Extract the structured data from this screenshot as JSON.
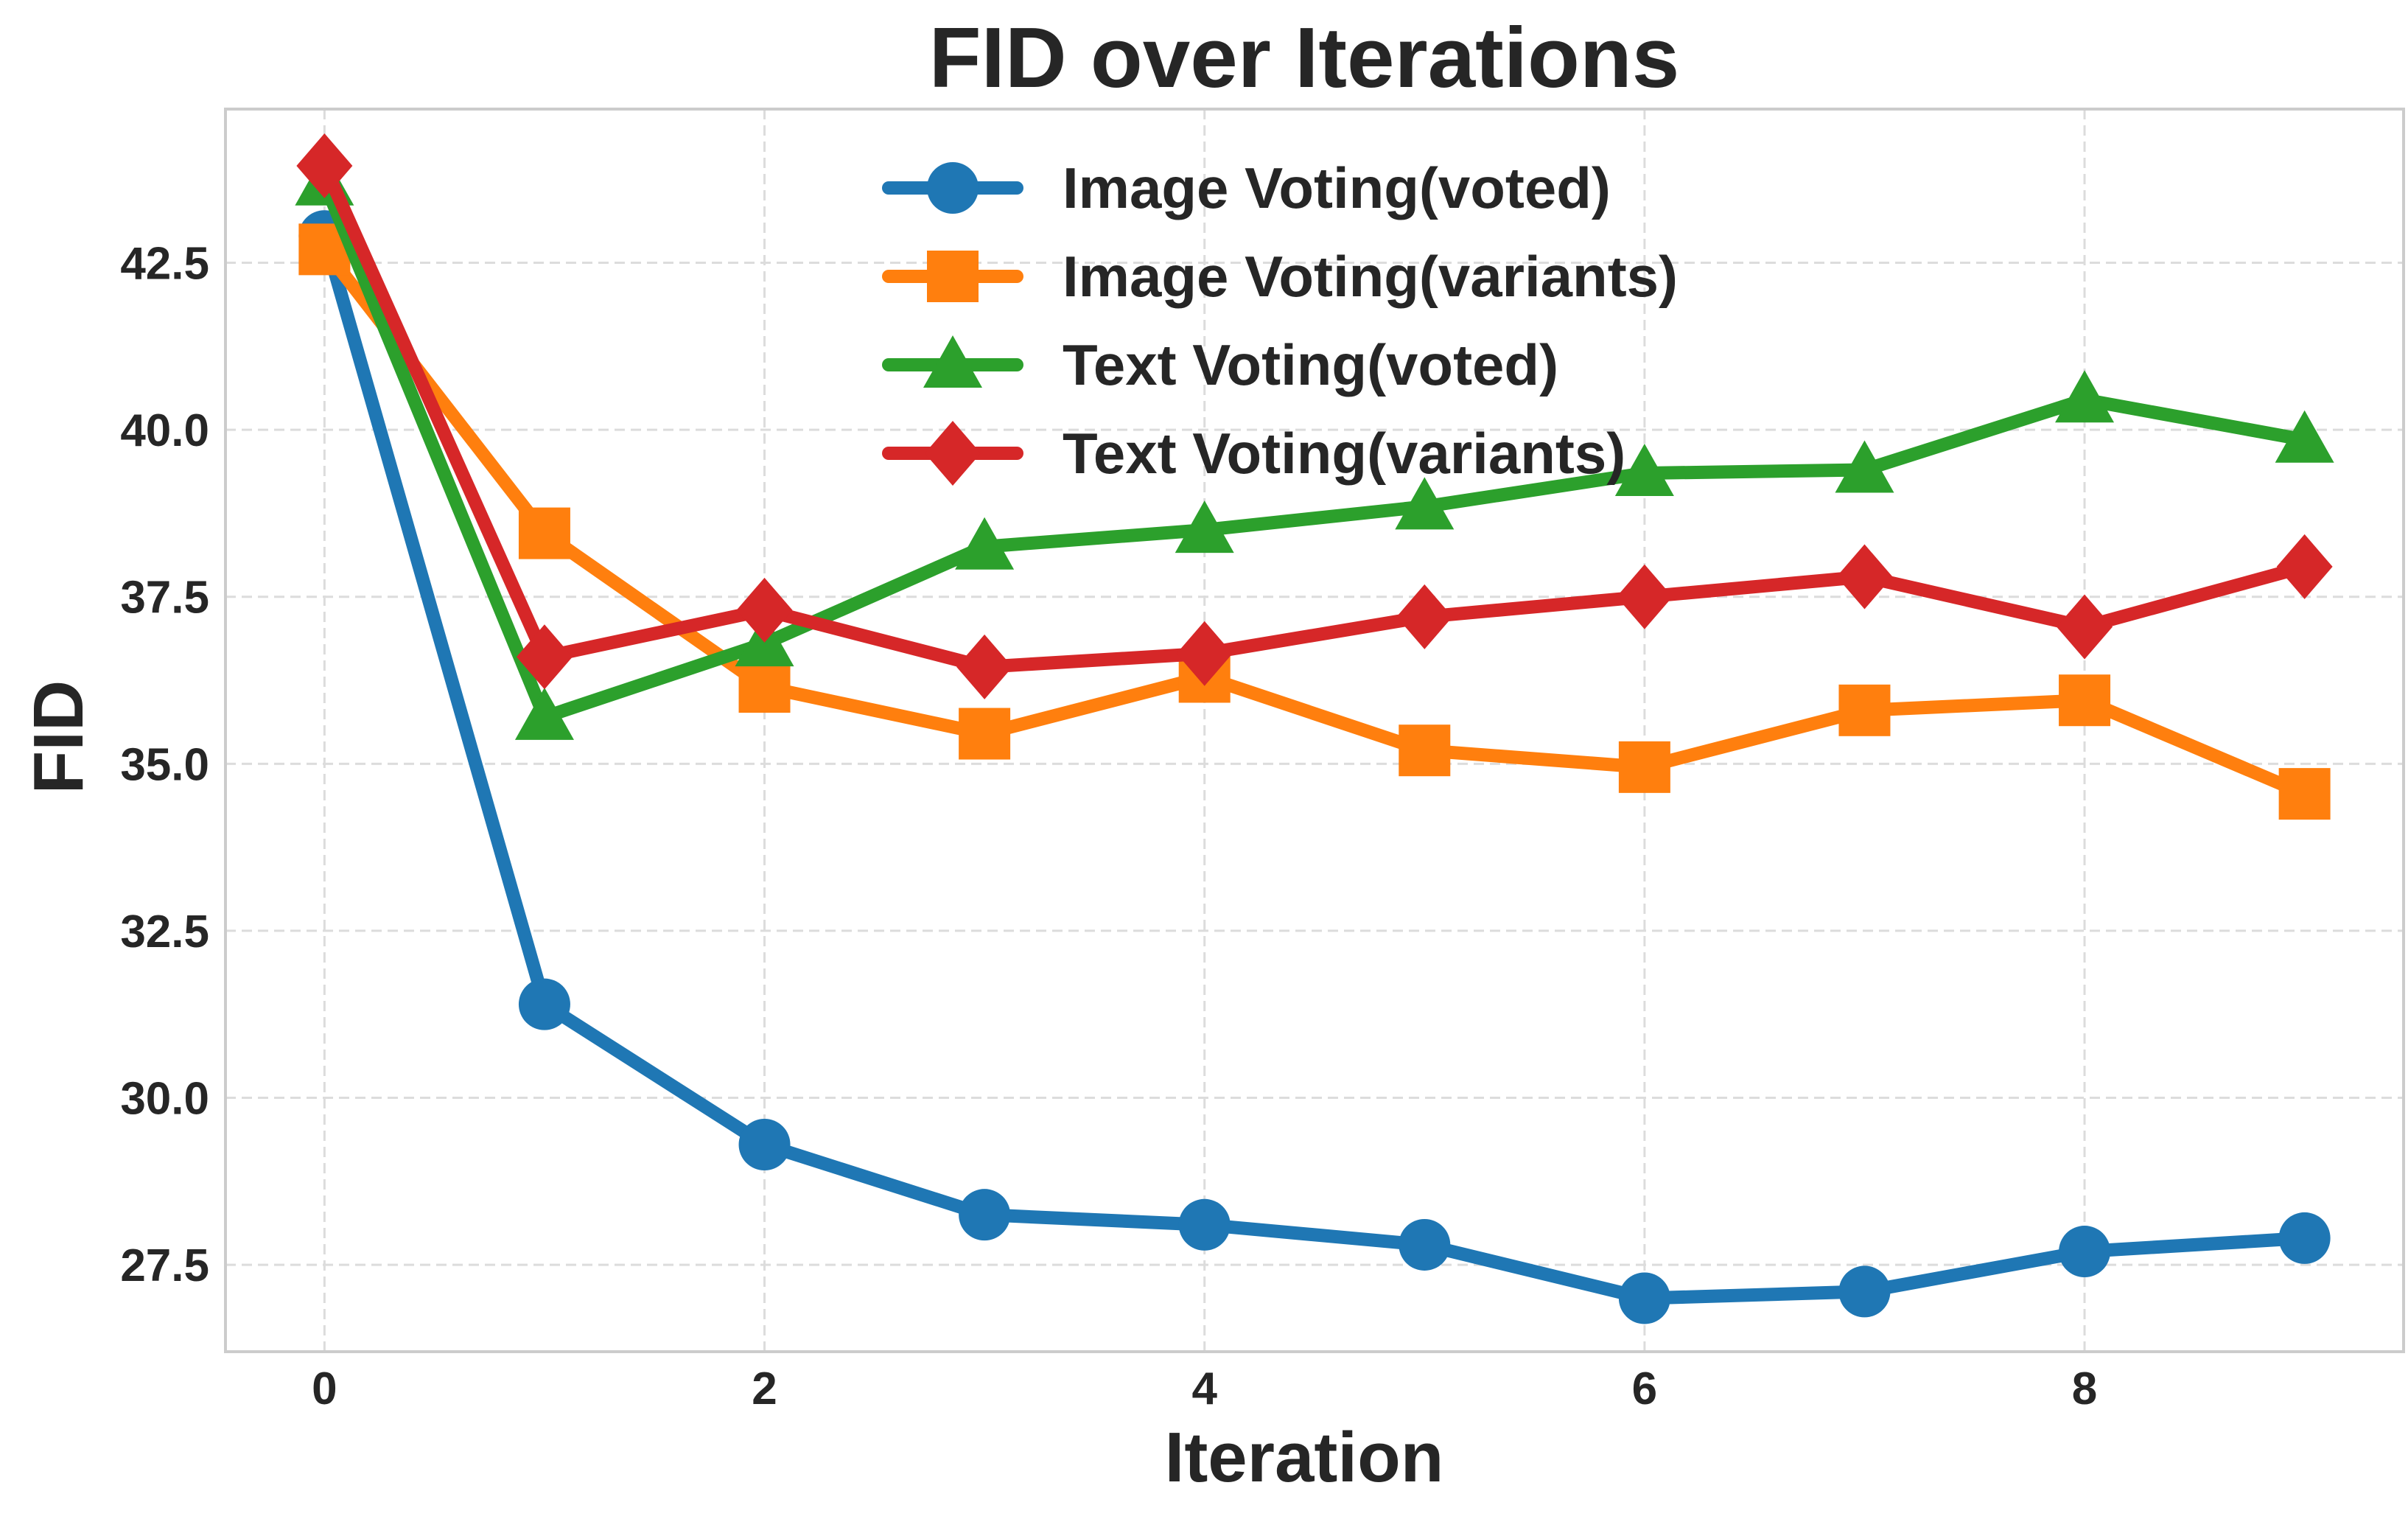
{
  "chart_data": {
    "type": "line",
    "title": "FID over Iterations",
    "xlabel": "Iteration",
    "ylabel": "FID",
    "x": [
      0,
      1,
      2,
      3,
      4,
      5,
      6,
      7,
      8,
      9
    ],
    "xlim": [
      -0.45,
      9.45
    ],
    "ylim": [
      26.2,
      44.8
    ],
    "xticks": [
      0,
      2,
      4,
      6,
      8
    ],
    "xtick_labels": [
      "0",
      "2",
      "4",
      "6",
      "8"
    ],
    "yticks": [
      27.5,
      30.0,
      32.5,
      35.0,
      37.5,
      40.0,
      42.5
    ],
    "ytick_labels": [
      "27.5",
      "30.0",
      "32.5",
      "35.0",
      "37.5",
      "40.0",
      "42.5"
    ],
    "grid": true,
    "legend_position": "top-center",
    "series": [
      {
        "name": "Image Voting(voted)",
        "color": "#1f77b4",
        "marker": "circle",
        "values": [
          42.9,
          31.4,
          29.3,
          28.25,
          28.1,
          27.8,
          27.0,
          27.1,
          27.7,
          27.9
        ]
      },
      {
        "name": "Image Voting(variants)",
        "color": "#ff7f0e",
        "marker": "square",
        "values": [
          42.7,
          38.45,
          36.15,
          35.45,
          36.3,
          35.2,
          34.95,
          35.8,
          35.95,
          34.55
        ]
      },
      {
        "name": "Text Voting(voted)",
        "color": "#2ca02c",
        "marker": "triangle",
        "values": [
          43.7,
          35.7,
          36.8,
          38.25,
          38.5,
          38.85,
          39.35,
          39.4,
          40.45,
          39.85
        ]
      },
      {
        "name": "Text Voting(variants)",
        "color": "#d62728",
        "marker": "diamond",
        "values": [
          43.95,
          36.6,
          37.3,
          36.45,
          36.65,
          37.2,
          37.5,
          37.8,
          37.05,
          37.95
        ]
      }
    ]
  }
}
